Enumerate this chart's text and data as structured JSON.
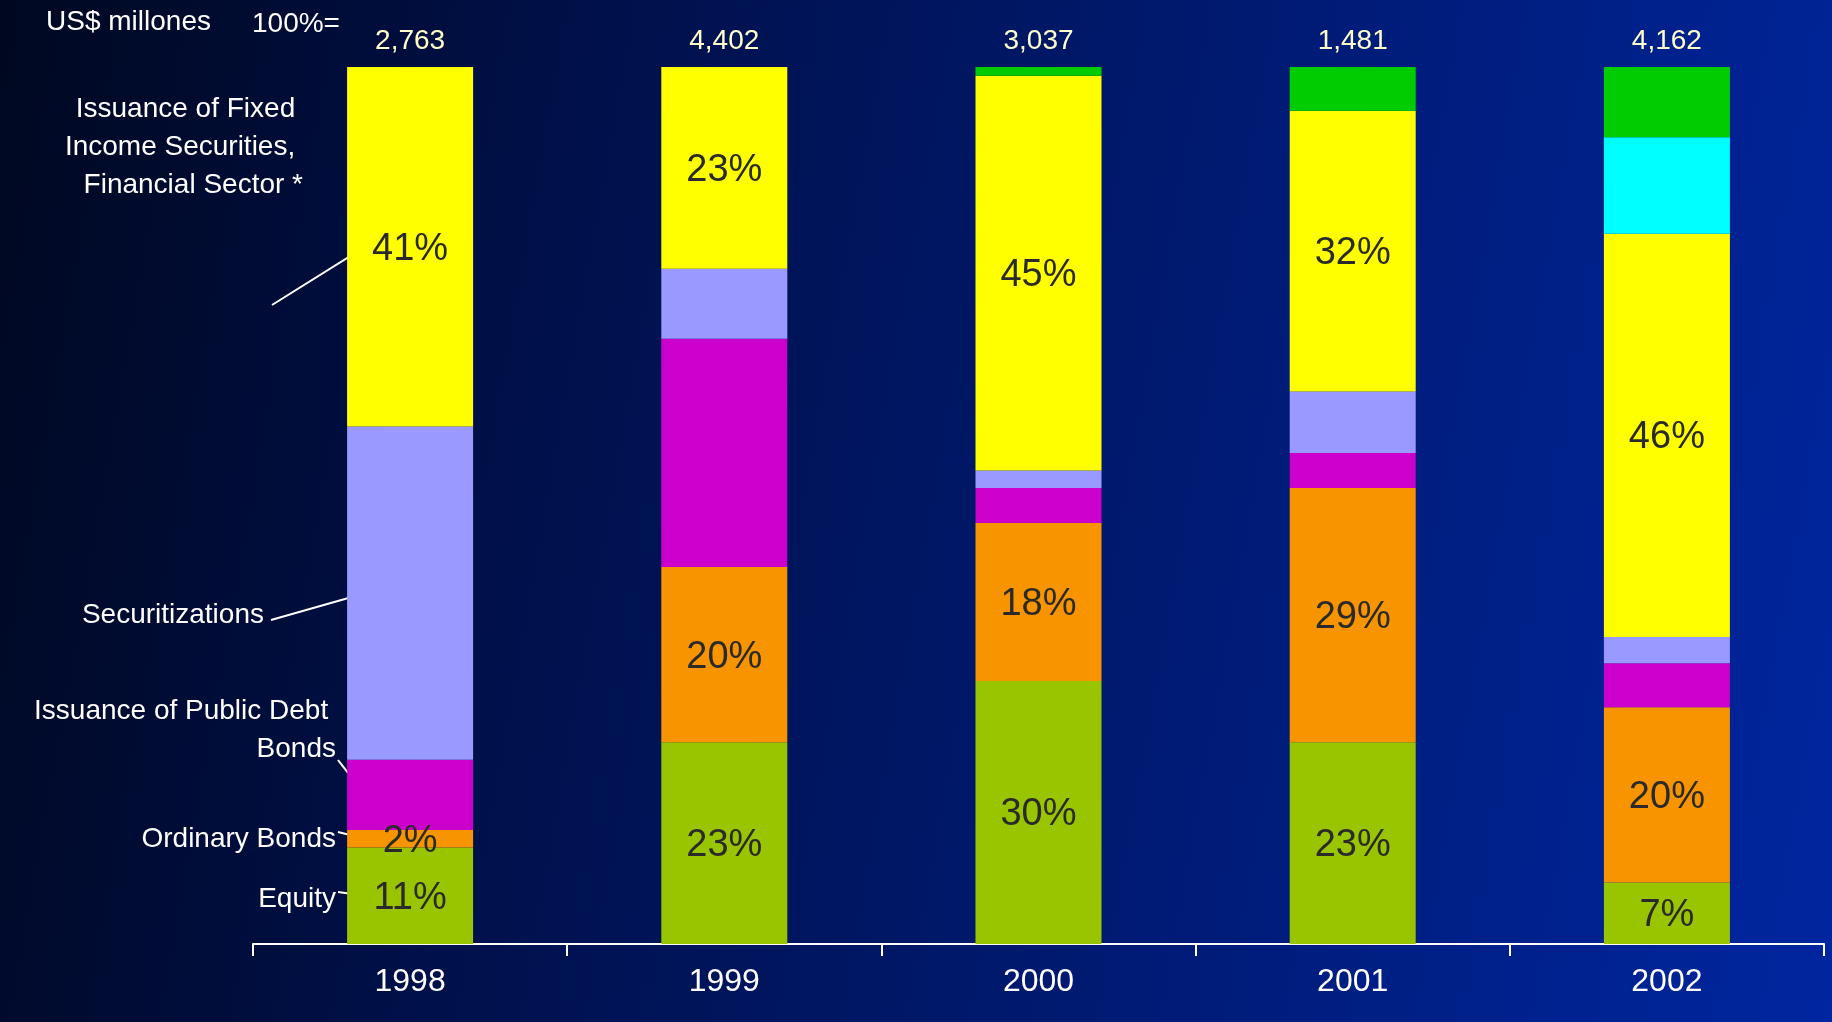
{
  "chart_data": {
    "type": "bar",
    "stacked": true,
    "ylim": [
      0,
      100
    ],
    "tick_labels": "x",
    "ylabel": "US$ millones",
    "annotations": [
      "100%=",
      {
        "text": "2,763",
        "x": "1998",
        "y": 100
      },
      {
        "text": "4,402",
        "x": "1999",
        "y": 100
      },
      {
        "text": "3,037",
        "x": "2000",
        "y": 100
      },
      {
        "text": "1,481",
        "x": "2001",
        "y": 100
      },
      {
        "text": "4,162",
        "x": "2002",
        "y": 100
      }
    ],
    "categories": [
      "1998",
      "1999",
      "2000",
      "2001",
      "2002"
    ],
    "series": [
      {
        "name": "Equity",
        "color": "#99c400",
        "values": [
          11,
          23,
          30,
          23,
          7
        ],
        "value_labels": [
          "11%",
          "23%",
          "30%",
          "23%",
          "7%"
        ]
      },
      {
        "name": "Ordinary Bonds",
        "color": "#f79400",
        "values": [
          2,
          20,
          18,
          29,
          20
        ],
        "value_labels": [
          "2%",
          "20%",
          "18%",
          "29%",
          "20%"
        ]
      },
      {
        "name": "Issuance of Public Debt Bonds",
        "color": "#cc00cc",
        "values": [
          8,
          26,
          4,
          4,
          5
        ]
      },
      {
        "name": "Securitizations",
        "color": "#9999ff",
        "values": [
          38,
          8,
          2,
          7,
          3
        ]
      },
      {
        "name": "Issuance of Fixed Income Securities, Financial Sector *",
        "color": "#ffff00",
        "values": [
          41,
          23,
          45,
          32,
          46
        ],
        "value_labels": [
          "41%",
          "23%",
          "45%",
          "32%",
          "46%"
        ]
      },
      {
        "color": "#00ffff",
        "values": [
          null,
          null,
          null,
          null,
          11
        ]
      },
      {
        "color": "#00cc00",
        "values": [
          null,
          null,
          1,
          5,
          8
        ]
      }
    ]
  }
}
